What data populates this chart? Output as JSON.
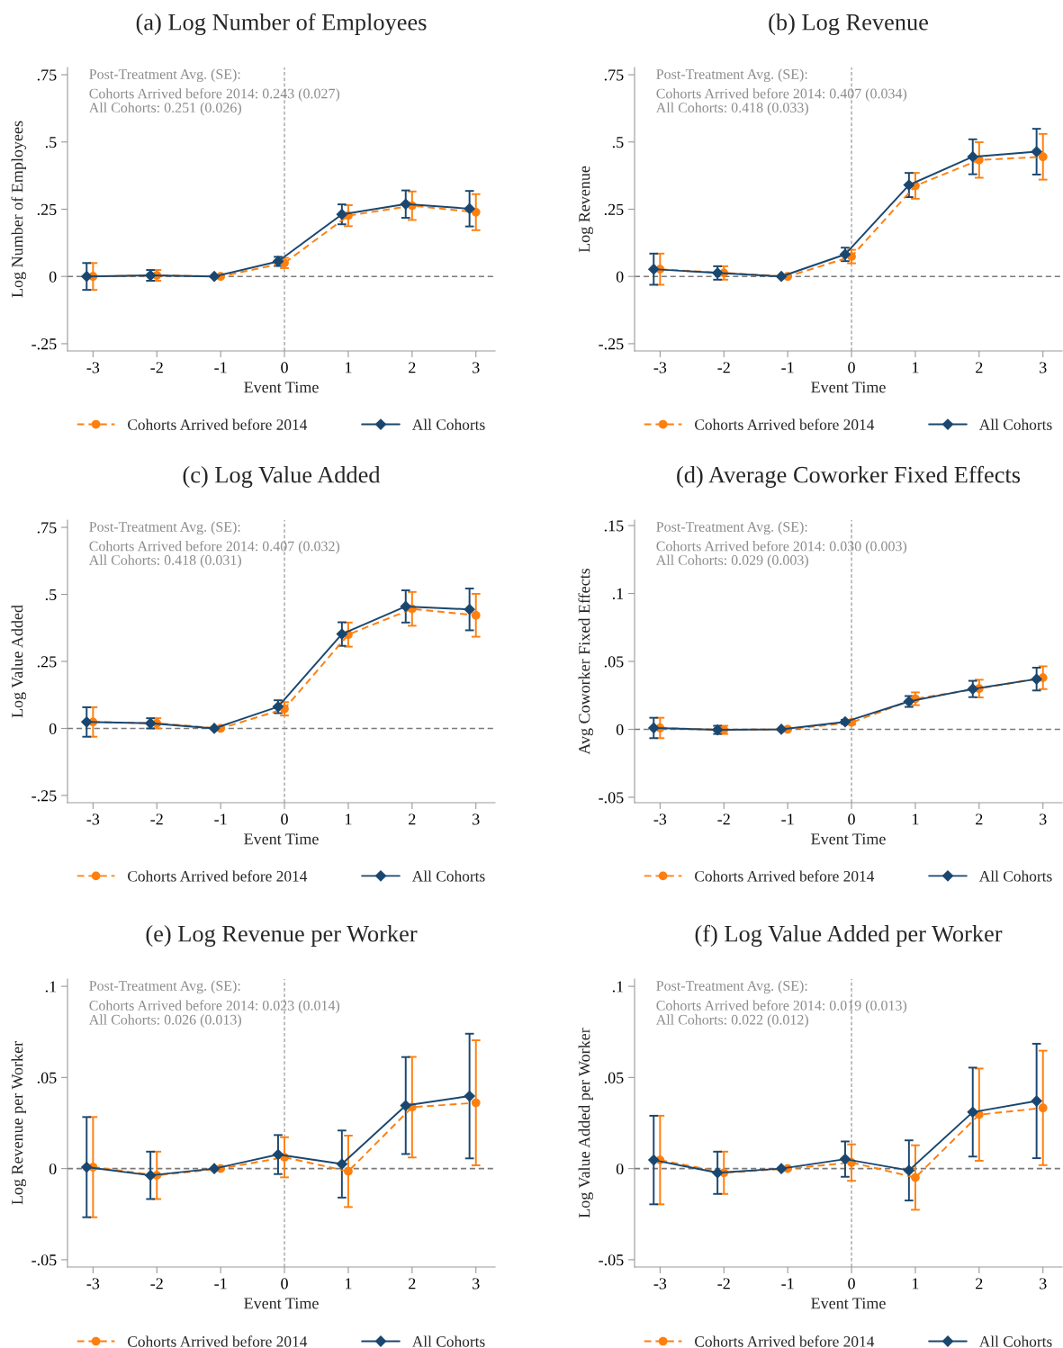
{
  "chart_data": [
    {
      "type": "line",
      "title": "(a) Log Number of Employees",
      "xlabel": "Event Time",
      "ylabel": "Log Number of Employees",
      "annotations": [
        "Post-Treatment Avg. (SE):",
        "Cohorts Arrived before 2014: 0.243 (0.027)",
        "All Cohorts: 0.251 (0.026)"
      ],
      "xlim": [
        -3.4,
        3.3
      ],
      "xticks": [
        -3,
        -2,
        -1,
        0,
        1,
        2,
        3
      ],
      "ylim": [
        -0.277,
        0.777
      ],
      "yticks": [
        {
          "value": -0.25,
          "label": "-.25"
        },
        0,
        {
          "value": 0.25,
          "label": ".25"
        },
        {
          "value": 0.5,
          "label": ".5"
        },
        {
          "value": 0.75,
          "label": ".75"
        }
      ],
      "ref_lines": [
        {
          "axis": "y",
          "value": 0,
          "color": "#7a7a7a",
          "line_style": "dashed"
        },
        {
          "axis": "x",
          "value": 0,
          "color": "#9a9a9a",
          "line_style": "dashed"
        }
      ],
      "legend": "bottom",
      "grid": false,
      "series": [
        {
          "name": "Cohorts Arrived before 2014",
          "color": "#ff7f0e",
          "marker": "circle",
          "line_style": "dashed",
          "x": [
            -3,
            -2,
            -1,
            0,
            1,
            2,
            3
          ],
          "values": [
            0,
            0.004,
            0,
            0.05,
            0.226,
            0.263,
            0.239
          ],
          "errors": [
            0.05,
            0.02,
            null,
            0.019,
            0.039,
            0.053,
            0.067
          ]
        },
        {
          "name": "All Cohorts",
          "color": "#1a476f",
          "marker": "diamond",
          "line_style": "solid",
          "x": [
            -3.1,
            -2.1,
            -1.1,
            -0.1,
            0.9,
            1.9,
            2.9
          ],
          "values": [
            0,
            0.004,
            0,
            0.056,
            0.231,
            0.269,
            0.252
          ],
          "errors": [
            0.05,
            0.02,
            null,
            0.017,
            0.037,
            0.051,
            0.066
          ]
        }
      ]
    },
    {
      "type": "line",
      "title": "(b) Log Revenue",
      "xlabel": "Event Time",
      "ylabel": "Log Revenue",
      "annotations": [
        "Post-Treatment Avg. (SE):",
        "Cohorts Arrived before 2014: 0.407 (0.034)",
        "All Cohorts: 0.418 (0.033)"
      ],
      "xlim": [
        -3.4,
        3.3
      ],
      "xticks": [
        -3,
        -2,
        -1,
        0,
        1,
        2,
        3
      ],
      "ylim": [
        -0.277,
        0.777
      ],
      "yticks": [
        {
          "value": -0.25,
          "label": "-.25"
        },
        0,
        {
          "value": 0.25,
          "label": ".25"
        },
        {
          "value": 0.5,
          "label": ".5"
        },
        {
          "value": 0.75,
          "label": ".75"
        }
      ],
      "ref_lines": [
        {
          "axis": "y",
          "value": 0,
          "color": "#7a7a7a",
          "line_style": "dashed"
        },
        {
          "axis": "x",
          "value": 0,
          "color": "#9a9a9a",
          "line_style": "dashed"
        }
      ],
      "legend": "bottom",
      "grid": false,
      "series": [
        {
          "name": "Cohorts Arrived before 2014",
          "color": "#ff7f0e",
          "marker": "circle",
          "line_style": "dashed",
          "x": [
            -3,
            -2,
            -1,
            0,
            1,
            2,
            3
          ],
          "values": [
            0.027,
            0.013,
            0,
            0.074,
            0.337,
            0.433,
            0.445
          ],
          "errors": [
            0.058,
            0.025,
            null,
            0.025,
            0.048,
            0.066,
            0.085
          ]
        },
        {
          "name": "All Cohorts",
          "color": "#1a476f",
          "marker": "diamond",
          "line_style": "solid",
          "x": [
            -3.1,
            -2.1,
            -1.1,
            -0.1,
            0.9,
            1.9,
            2.9
          ],
          "values": [
            0.027,
            0.013,
            0,
            0.082,
            0.34,
            0.445,
            0.464
          ],
          "errors": [
            0.058,
            0.025,
            null,
            0.025,
            0.045,
            0.065,
            0.085
          ]
        }
      ]
    },
    {
      "type": "line",
      "title": "(c) Log Value Added",
      "xlabel": "Event Time",
      "ylabel": "Log Value Added",
      "annotations": [
        "Post-Treatment Avg. (SE):",
        "Cohorts Arrived before 2014: 0.407 (0.032)",
        "All Cohorts: 0.418 (0.031)"
      ],
      "xlim": [
        -3.4,
        3.3
      ],
      "xticks": [
        -3,
        -2,
        -1,
        0,
        1,
        2,
        3
      ],
      "ylim": [
        -0.277,
        0.777
      ],
      "yticks": [
        {
          "value": -0.25,
          "label": "-.25"
        },
        0,
        {
          "value": 0.25,
          "label": ".25"
        },
        {
          "value": 0.5,
          "label": ".5"
        },
        {
          "value": 0.75,
          "label": ".75"
        }
      ],
      "ref_lines": [
        {
          "axis": "y",
          "value": 0,
          "color": "#7a7a7a",
          "line_style": "dashed"
        },
        {
          "axis": "x",
          "value": 0,
          "color": "#9a9a9a",
          "line_style": "dashed"
        }
      ],
      "legend": "bottom",
      "grid": false,
      "series": [
        {
          "name": "Cohorts Arrived before 2014",
          "color": "#ff7f0e",
          "marker": "circle",
          "line_style": "dashed",
          "x": [
            -3,
            -2,
            -1,
            0,
            1,
            2,
            3
          ],
          "values": [
            0.024,
            0.019,
            0,
            0.073,
            0.35,
            0.446,
            0.422
          ],
          "errors": [
            0.055,
            0.019,
            null,
            0.025,
            0.045,
            0.063,
            0.08
          ]
        },
        {
          "name": "All Cohorts",
          "color": "#1a476f",
          "marker": "diamond",
          "line_style": "solid",
          "x": [
            -3.1,
            -2.1,
            -1.1,
            -0.1,
            0.9,
            1.9,
            2.9
          ],
          "values": [
            0.024,
            0.019,
            0,
            0.081,
            0.352,
            0.455,
            0.444
          ],
          "errors": [
            0.055,
            0.019,
            null,
            0.024,
            0.044,
            0.06,
            0.078
          ]
        }
      ]
    },
    {
      "type": "line",
      "title": "(d) Average Coworker Fixed Effects",
      "xlabel": "Event Time",
      "ylabel": "Avg Coworker Fixed Effects",
      "annotations": [
        "Post-Treatment Avg. (SE):",
        "Cohorts Arrived before 2014: 0.030 (0.003)",
        "All Cohorts: 0.029 (0.003)"
      ],
      "xlim": [
        -3.4,
        3.3
      ],
      "xticks": [
        -3,
        -2,
        -1,
        0,
        1,
        2,
        3
      ],
      "ylim": [
        -0.054,
        0.154
      ],
      "yticks": [
        {
          "value": -0.05,
          "label": "-.05"
        },
        0,
        {
          "value": 0.05,
          "label": ".05"
        },
        {
          "value": 0.1,
          "label": ".1"
        },
        {
          "value": 0.15,
          "label": ".15"
        }
      ],
      "ref_lines": [
        {
          "axis": "y",
          "value": 0,
          "color": "#7a7a7a",
          "line_style": "dashed"
        },
        {
          "axis": "x",
          "value": 0,
          "color": "#9a9a9a",
          "line_style": "dashed"
        }
      ],
      "legend": "bottom",
      "grid": false,
      "series": [
        {
          "name": "Cohorts Arrived before 2014",
          "color": "#ff7f0e",
          "marker": "circle",
          "line_style": "dashed",
          "x": [
            -3,
            -2,
            -1,
            0,
            1,
            2,
            3
          ],
          "values": [
            0.001,
            -0.0004,
            0,
            0.005,
            0.0225,
            0.03,
            0.038
          ],
          "errors": [
            0.0075,
            0.003,
            null,
            0.0015,
            0.0047,
            0.0065,
            0.0084
          ]
        },
        {
          "name": "All Cohorts",
          "color": "#1a476f",
          "marker": "diamond",
          "line_style": "solid",
          "x": [
            -3.1,
            -2.1,
            -1.1,
            -0.1,
            0.9,
            1.9,
            2.9
          ],
          "values": [
            0.001,
            -0.0004,
            0,
            0.0055,
            0.0205,
            0.0297,
            0.037
          ],
          "errors": [
            0.0075,
            0.003,
            null,
            0.0015,
            0.004,
            0.006,
            0.0084
          ]
        }
      ]
    },
    {
      "type": "line",
      "title": "(e) Log Revenue per Worker",
      "xlabel": "Event Time",
      "ylabel": "Log Revenue per Worker",
      "annotations": [
        "Post-Treatment Avg. (SE):",
        "Cohorts Arrived before 2014: 0.023 (0.014)",
        "All Cohorts: 0.026 (0.013)"
      ],
      "xlim": [
        -3.4,
        3.3
      ],
      "xticks": [
        -3,
        -2,
        -1,
        0,
        1,
        2,
        3
      ],
      "ylim": [
        -0.054,
        0.104
      ],
      "yticks": [
        {
          "value": -0.05,
          "label": "-.05"
        },
        0,
        {
          "value": 0.05,
          "label": ".05"
        },
        {
          "value": 0.1,
          "label": ".1"
        }
      ],
      "ref_lines": [
        {
          "axis": "y",
          "value": 0,
          "color": "#7a7a7a",
          "line_style": "dashed"
        },
        {
          "axis": "x",
          "value": 0,
          "color": "#9a9a9a",
          "line_style": "dashed"
        }
      ],
      "legend": "bottom",
      "grid": false,
      "series": [
        {
          "name": "Cohorts Arrived before 2014",
          "color": "#ff7f0e",
          "marker": "circle",
          "line_style": "dashed",
          "x": [
            -3,
            -2,
            -1,
            0,
            1,
            2,
            3
          ],
          "values": [
            0.0008,
            -0.0037,
            0,
            0.0062,
            -0.0015,
            0.0337,
            0.0361
          ],
          "errors": [
            0.0275,
            0.013,
            null,
            0.011,
            0.0196,
            0.0276,
            0.0343
          ]
        },
        {
          "name": "All Cohorts",
          "color": "#1a476f",
          "marker": "diamond",
          "line_style": "solid",
          "x": [
            -3.1,
            -2.1,
            -1.1,
            -0.1,
            0.9,
            1.9,
            2.9
          ],
          "values": [
            0.0008,
            -0.0037,
            0,
            0.0077,
            0.0025,
            0.0346,
            0.0398
          ],
          "errors": [
            0.0275,
            0.013,
            null,
            0.0107,
            0.0184,
            0.0266,
            0.0342
          ]
        }
      ]
    },
    {
      "type": "line",
      "title": "(f) Log Value Added per Worker",
      "xlabel": "Event Time",
      "ylabel": "Log Value Added per Worker",
      "annotations": [
        "Post-Treatment Avg. (SE):",
        "Cohorts Arrived before 2014: 0.019 (0.013)",
        "All Cohorts: 0.022 (0.012)"
      ],
      "xlim": [
        -3.4,
        3.3
      ],
      "xticks": [
        -3,
        -2,
        -1,
        0,
        1,
        2,
        3
      ],
      "ylim": [
        -0.054,
        0.104
      ],
      "yticks": [
        {
          "value": -0.05,
          "label": "-.05"
        },
        0,
        {
          "value": 0.05,
          "label": ".05"
        },
        {
          "value": 0.1,
          "label": ".1"
        }
      ],
      "ref_lines": [
        {
          "axis": "y",
          "value": 0,
          "color": "#7a7a7a",
          "line_style": "dashed"
        },
        {
          "axis": "x",
          "value": 0,
          "color": "#9a9a9a",
          "line_style": "dashed"
        }
      ],
      "legend": "bottom",
      "grid": false,
      "series": [
        {
          "name": "Cohorts Arrived before 2014",
          "color": "#ff7f0e",
          "marker": "circle",
          "line_style": "dashed",
          "x": [
            -3,
            -2,
            -1,
            0,
            1,
            2,
            3
          ],
          "values": [
            0.0047,
            -0.0023,
            0,
            0.0033,
            -0.0049,
            0.0296,
            0.0333
          ],
          "errors": [
            0.0243,
            0.0116,
            null,
            0.01,
            0.0177,
            0.0253,
            0.0314
          ]
        },
        {
          "name": "All Cohorts",
          "color": "#1a476f",
          "marker": "diamond",
          "line_style": "solid",
          "x": [
            -3.1,
            -2.1,
            -1.1,
            -0.1,
            0.9,
            1.9,
            2.9
          ],
          "values": [
            0.0047,
            -0.0023,
            0,
            0.0052,
            -0.001,
            0.031,
            0.0371
          ],
          "errors": [
            0.0243,
            0.0116,
            null,
            0.0097,
            0.0165,
            0.0244,
            0.0314
          ]
        }
      ]
    }
  ]
}
